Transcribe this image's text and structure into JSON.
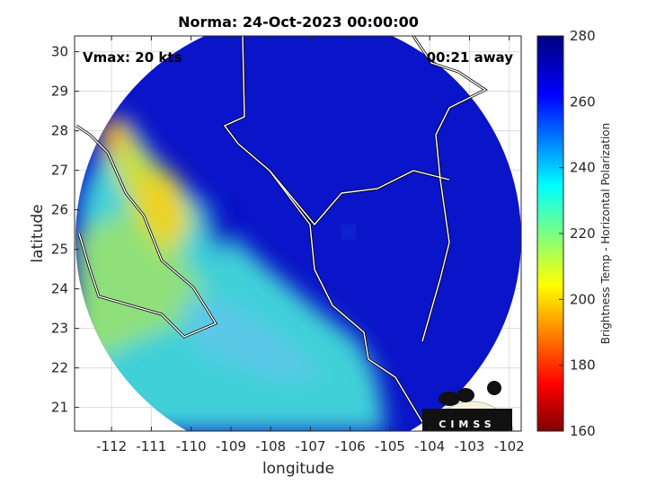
{
  "chart_data": {
    "type": "heatmap",
    "title": "Norma: 24-Oct-2023 00:00:00",
    "xlabel": "longitude",
    "ylabel": "latitude",
    "xlim": [
      -112.93,
      -101.7
    ],
    "ylim": [
      20.4,
      30.4
    ],
    "xticks": [
      -112,
      -111,
      -110,
      -109,
      -108,
      -107,
      -106,
      -105,
      -104,
      -103,
      -102
    ],
    "yticks": [
      21,
      22,
      23,
      24,
      25,
      26,
      27,
      28,
      29,
      30
    ],
    "grid": true,
    "colorbar": {
      "label": "Brightness Temp - Horizontal Polarization",
      "range": [
        160,
        280
      ],
      "ticks": [
        160,
        180,
        200,
        220,
        240,
        260,
        280
      ],
      "colormap": "jet"
    },
    "annotations": {
      "vmax": "Vmax: 20 kts",
      "time_away": "00:21 away"
    },
    "logo": "CIMSS"
  },
  "colors": {
    "cold": "#00007f",
    "warm": "#800000"
  }
}
